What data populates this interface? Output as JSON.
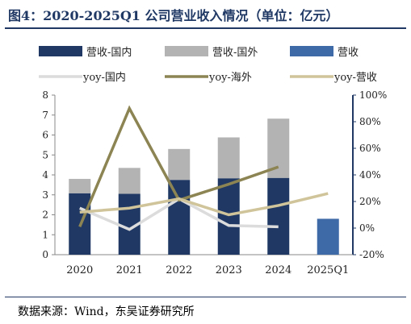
{
  "title": "图4：2020-2025Q1 公司营业收入情况（单位：亿元）",
  "source": "数据来源：Wind，东吴证券研究所",
  "colors": {
    "domestic_rev": "#1f3864",
    "overseas_rev": "#b3b3b3",
    "total_rev": "#3e6aa8",
    "yoy_domestic": "#dcdcdc",
    "yoy_overseas": "#8c8452",
    "yoy_total": "#cfc49a",
    "axis_accent": "#1f3864"
  },
  "chart_data": {
    "type": "bar",
    "categories": [
      "2020",
      "2021",
      "2022",
      "2023",
      "2024",
      "2025Q1"
    ],
    "y_left": {
      "min": 0,
      "max": 8,
      "ticks": [
        "0",
        "1",
        "2",
        "3",
        "4",
        "5",
        "6",
        "7",
        "8"
      ]
    },
    "y_right": {
      "min": -20,
      "max": 100,
      "ticks": [
        "-20%",
        "0%",
        "20%",
        "40%",
        "60%",
        "80%",
        "100%"
      ]
    },
    "grid": false,
    "legend_position": "top",
    "series": [
      {
        "name": "营收-国内",
        "type": "bar-stack",
        "axis": "left",
        "values": [
          3.08,
          3.05,
          3.75,
          3.83,
          3.85,
          null
        ]
      },
      {
        "name": "营收-国外",
        "type": "bar-stack",
        "axis": "left",
        "values": [
          0.72,
          1.3,
          1.55,
          2.05,
          2.97,
          null
        ]
      },
      {
        "name": "营收",
        "type": "bar",
        "axis": "left",
        "values": [
          null,
          null,
          null,
          null,
          null,
          1.8
        ]
      },
      {
        "name": "yoy-国内",
        "type": "line",
        "axis": "right",
        "values": [
          15,
          -1,
          22,
          2,
          1,
          null
        ]
      },
      {
        "name": "yoy-海外",
        "type": "line",
        "axis": "right",
        "values": [
          1,
          90,
          21,
          33,
          46,
          null
        ]
      },
      {
        "name": "yoy-营收",
        "type": "line",
        "axis": "right",
        "values": [
          12,
          15,
          22,
          10,
          17,
          26
        ]
      }
    ]
  }
}
